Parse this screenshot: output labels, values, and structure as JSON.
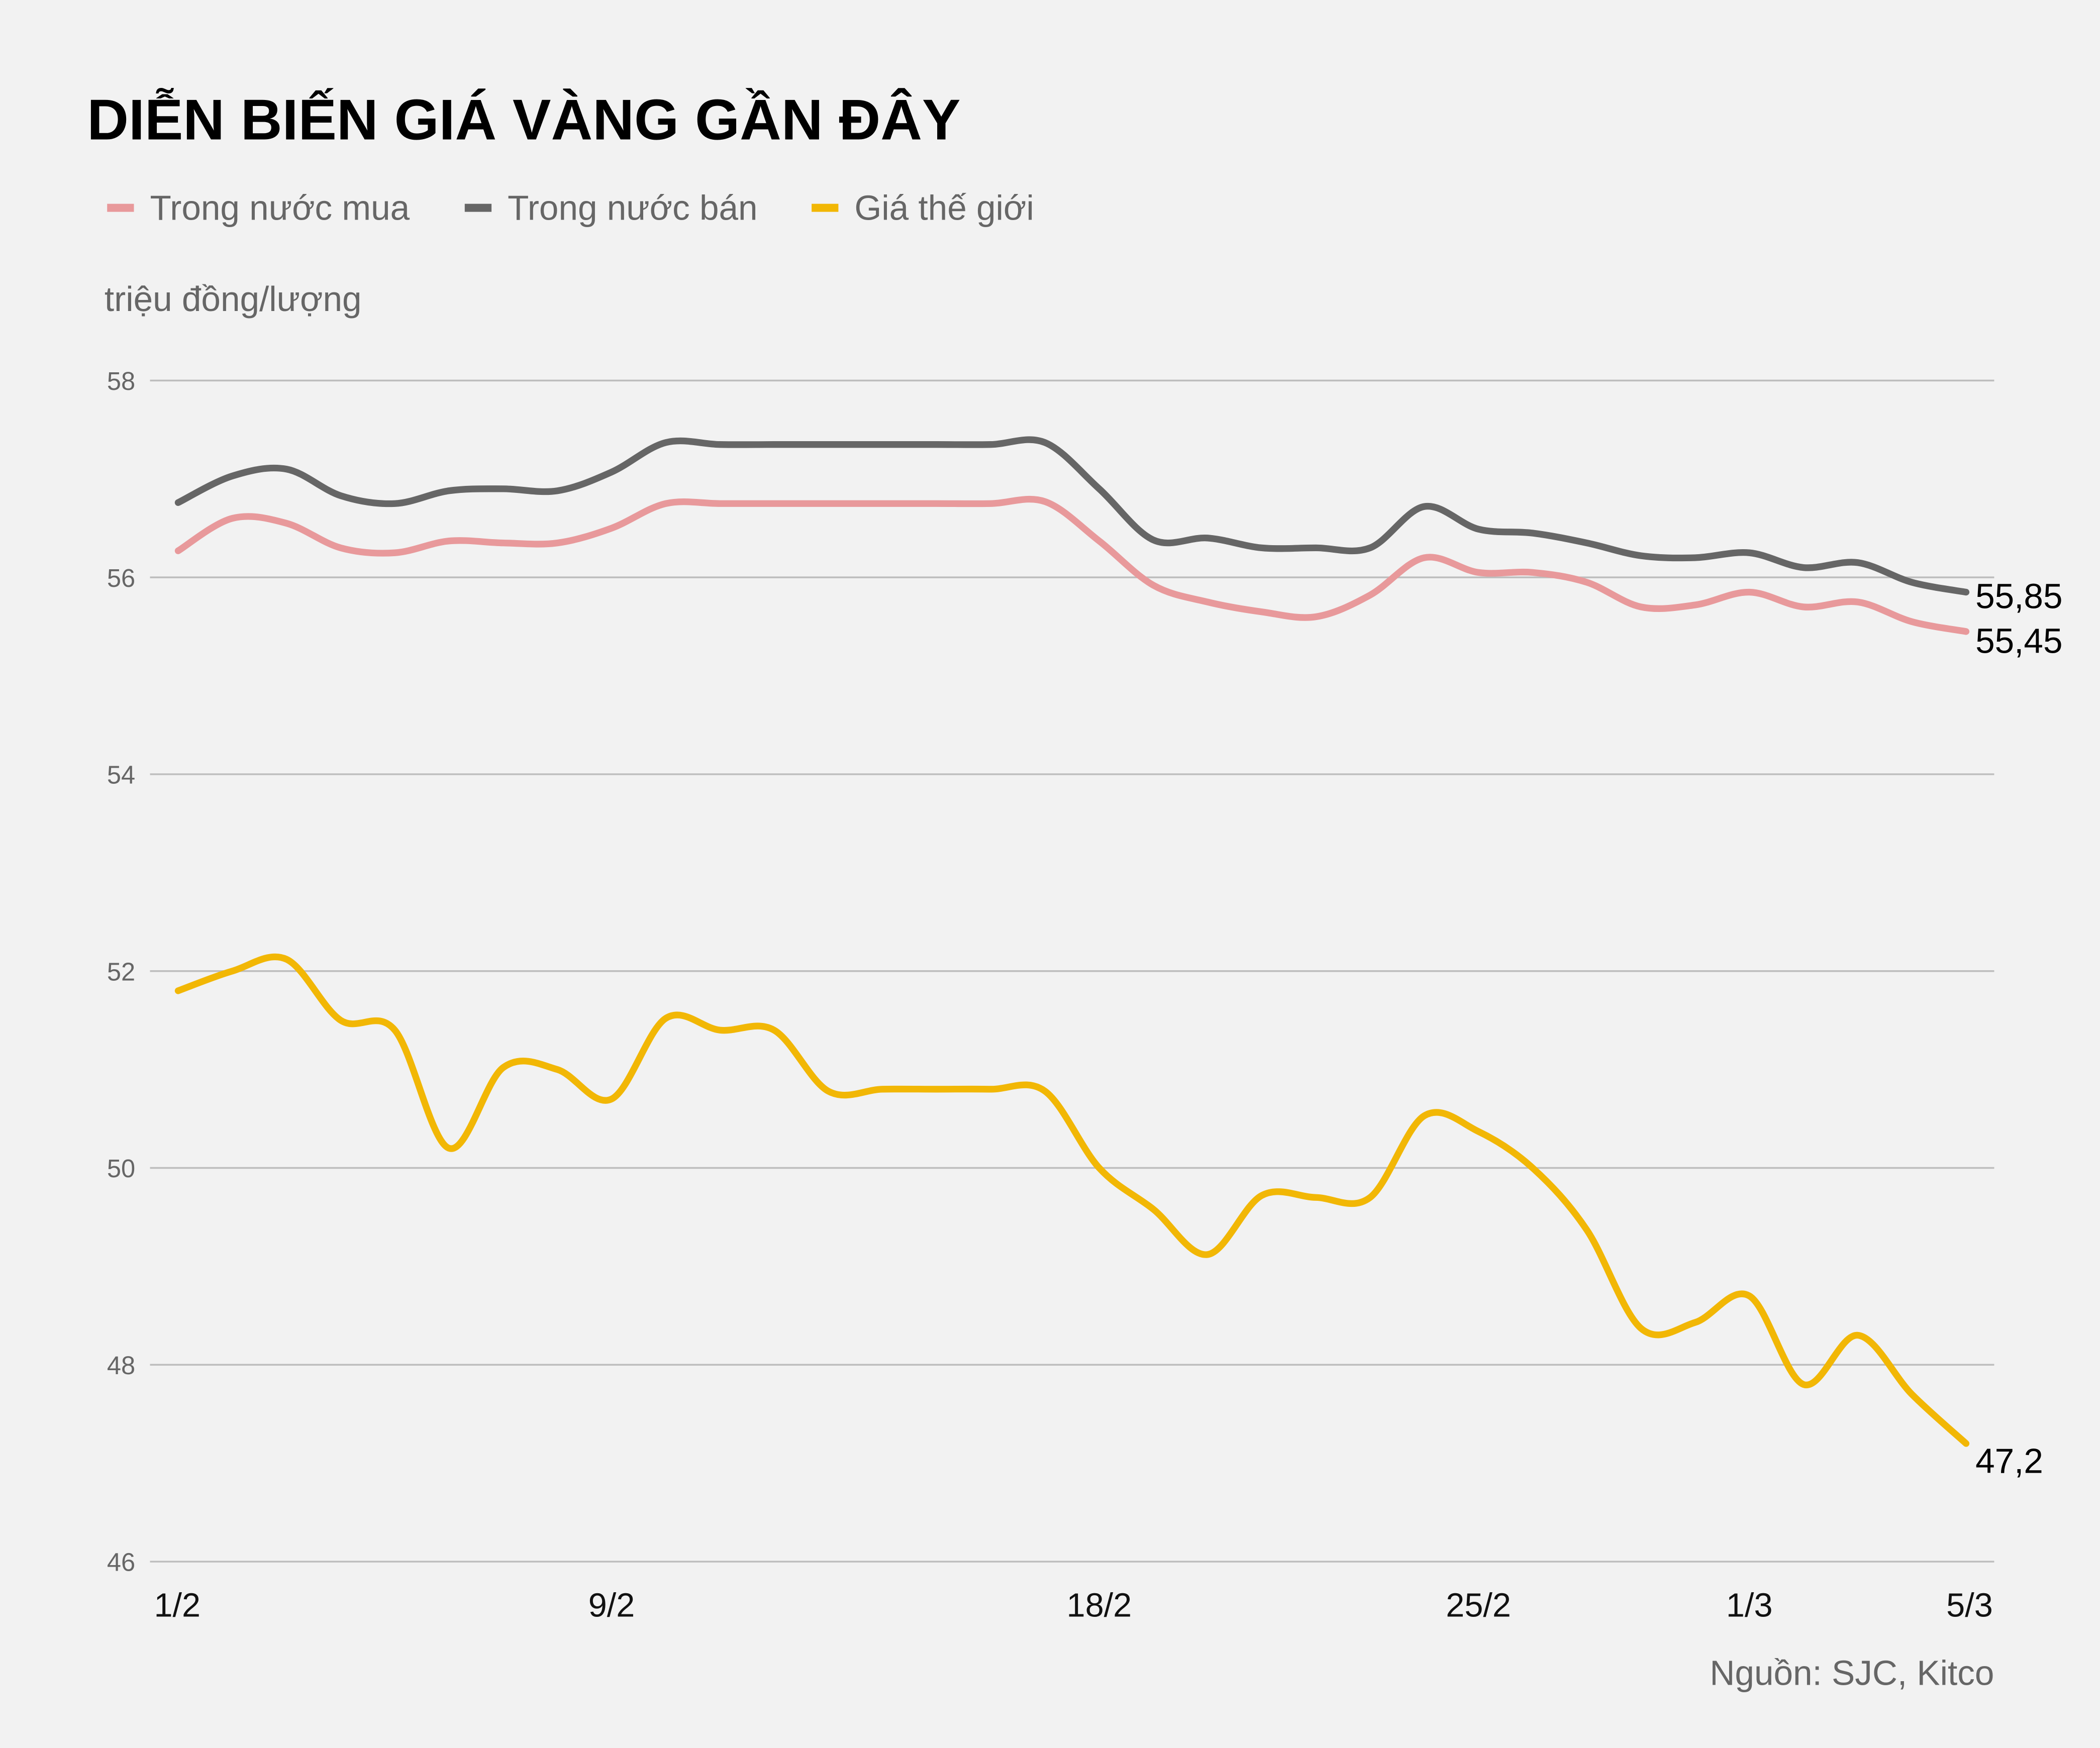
{
  "chart_data": {
    "type": "line",
    "title": "DIỄN BIẾN GIÁ VÀNG GẦN ĐÂY",
    "ylabel": "triệu đồng/lượng",
    "xlabel": "",
    "source": "Nguồn: SJC, Kitco",
    "ylim": [
      46,
      58
    ],
    "yticks": [
      "58",
      "56",
      "54",
      "52",
      "50",
      "48",
      "46"
    ],
    "ytick_values": [
      58,
      56,
      54,
      52,
      50,
      48,
      46
    ],
    "grid": true,
    "legend_position": "top-left",
    "x": [
      "1/2",
      "2/2",
      "3/2",
      "4/2",
      "5/2",
      "6/2",
      "7/2",
      "8/2",
      "9/2",
      "10/2",
      "11/2",
      "12/2",
      "13/2",
      "14/2",
      "15/2",
      "16/2",
      "17/2",
      "18/2",
      "19/2",
      "20/2",
      "21/2",
      "22/2",
      "23/2",
      "24/2",
      "25/2",
      "26/2",
      "27/2",
      "28/2",
      "29/2",
      "1/3",
      "2/3",
      "3/3",
      "4/3",
      "5/3"
    ],
    "xticks": [
      "1/2",
      "9/2",
      "18/2",
      "25/2",
      "1/3",
      "5/3"
    ],
    "xtick_index": [
      0,
      8,
      17,
      24,
      29,
      33
    ],
    "series": [
      {
        "name": "Trong nước mua",
        "color": "#e8999b",
        "values": [
          56.27,
          56.6,
          56.55,
          56.3,
          56.25,
          56.37,
          56.35,
          56.35,
          56.5,
          56.75,
          56.75,
          56.75,
          56.75,
          56.75,
          56.75,
          56.75,
          56.77,
          56.37,
          55.92,
          55.75,
          55.65,
          55.6,
          55.82,
          56.2,
          56.05,
          56.05,
          55.95,
          55.7,
          55.72,
          55.85,
          55.7,
          55.75,
          55.55,
          55.45
        ],
        "end_label": "55,45"
      },
      {
        "name": "Trong nước bán",
        "color": "#666666",
        "values": [
          56.76,
          57.03,
          57.1,
          56.83,
          56.75,
          56.88,
          56.9,
          56.88,
          57.07,
          57.37,
          57.35,
          57.35,
          57.35,
          57.35,
          57.35,
          57.35,
          57.37,
          56.9,
          56.38,
          56.4,
          56.3,
          56.3,
          56.3,
          56.72,
          56.49,
          56.45,
          56.35,
          56.22,
          56.2,
          56.25,
          56.1,
          56.15,
          55.95,
          55.85
        ],
        "end_label": "55,85"
      },
      {
        "name": "Giá thế giới",
        "color": "#f2b705",
        "values": [
          51.8,
          52.0,
          52.12,
          51.5,
          51.4,
          50.2,
          51.02,
          51.0,
          50.7,
          51.52,
          51.4,
          51.4,
          50.78,
          50.8,
          50.8,
          50.8,
          50.78,
          50.0,
          49.58,
          49.12,
          49.72,
          49.7,
          49.7,
          50.53,
          50.37,
          50.0,
          49.37,
          48.37,
          48.43,
          48.7,
          47.8,
          48.3,
          47.7,
          47.2
        ],
        "end_label": "47,2"
      }
    ]
  }
}
